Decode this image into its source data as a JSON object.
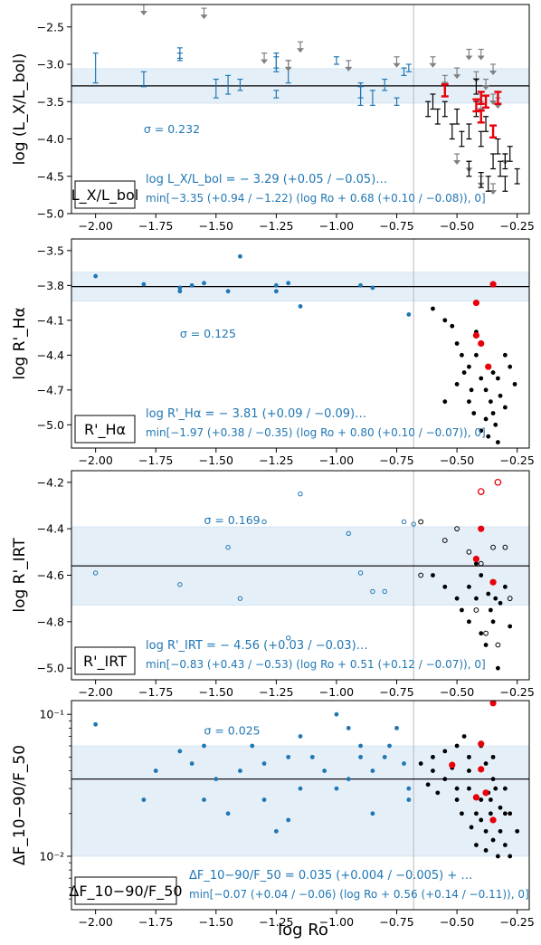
{
  "chart_data": [
    {
      "type": "scatter",
      "ylabel": "log (L_X/L_bol)",
      "xlabel": "",
      "xlim": [
        -2.1,
        -0.2
      ],
      "ylim": [
        -5.0,
        -2.2
      ],
      "xticks": [
        -2.0,
        -1.75,
        -1.5,
        -1.25,
        -1.0,
        -0.75,
        -0.5,
        -0.25
      ],
      "xtick_labels": [
        "−2.00",
        "−1.75",
        "−1.50",
        "−1.25",
        "−1.00",
        "−0.75",
        "−0.50",
        "−0.25"
      ],
      "yticks": [
        -2.5,
        -3.0,
        -3.5,
        -4.0,
        -4.5,
        -5.0
      ],
      "ytick_labels": [
        "−2.5",
        "−3.0",
        "−3.5",
        "−4.0",
        "−4.5",
        "−5.0"
      ],
      "log_y": false,
      "vline_x": -0.68,
      "fit": {
        "sat": -3.29,
        "slope": -3.35,
        "knee": -0.68,
        "sigma": 0.232
      },
      "label_box": "L_X/L_bol",
      "sigma_label": "σ = 0.232",
      "formula_line1": "log L_X/L_bol = − 3.29 (+0.05 / −0.05)…",
      "formula_line2": "min[−3.35 (+0.94 / −1.22) (log Ro + 0.68 (+0.10 / −0.08)), 0]",
      "blue_errorbars": [
        [
          -2.0,
          -2.85,
          -3.25
        ],
        [
          -1.8,
          -3.1,
          -3.3
        ],
        [
          -1.65,
          -2.78,
          -2.92
        ],
        [
          -1.65,
          -2.85,
          -2.95
        ],
        [
          -1.5,
          -3.2,
          -3.45
        ],
        [
          -1.45,
          -3.15,
          -3.4
        ],
        [
          -1.4,
          -3.2,
          -3.35
        ],
        [
          -1.25,
          -2.9,
          -3.05
        ],
        [
          -1.25,
          -2.85,
          -3.1
        ],
        [
          -1.25,
          -3.35,
          -3.45
        ],
        [
          -1.2,
          -2.95,
          -3.25
        ],
        [
          -1.0,
          -2.9,
          -3.0
        ],
        [
          -0.9,
          -3.25,
          -3.55
        ],
        [
          -0.9,
          -3.3,
          -3.45
        ],
        [
          -0.85,
          -3.35,
          -3.55
        ],
        [
          -0.8,
          -3.2,
          -3.35
        ],
        [
          -0.75,
          -3.45,
          -3.55
        ],
        [
          -0.72,
          -3.05,
          -3.15
        ],
        [
          -0.7,
          -3.0,
          -3.1
        ]
      ],
      "gray_upper_limits": [
        [
          -1.8,
          -2.2
        ],
        [
          -1.55,
          -2.25
        ],
        [
          -1.3,
          -2.85
        ],
        [
          -1.2,
          -2.95
        ],
        [
          -1.15,
          -2.7
        ],
        [
          -0.95,
          -2.95
        ],
        [
          -0.75,
          -2.9
        ],
        [
          -0.6,
          -2.9
        ],
        [
          -0.55,
          -3.15
        ],
        [
          -0.5,
          -3.05
        ],
        [
          -0.45,
          -2.8
        ],
        [
          -0.42,
          -3.1
        ],
        [
          -0.4,
          -2.8
        ],
        [
          -0.38,
          -3.2
        ],
        [
          -0.35,
          -3.0
        ],
        [
          -0.4,
          -3.5
        ],
        [
          -0.35,
          -3.4
        ],
        [
          -0.33,
          -3.45
        ],
        [
          -0.5,
          -4.2
        ],
        [
          -0.45,
          -4.3
        ],
        [
          -0.4,
          -4.5
        ],
        [
          -0.35,
          -4.6
        ],
        [
          -0.3,
          -4.2
        ]
      ],
      "black_errorbars": [
        [
          -0.6,
          -3.5
        ],
        [
          -0.55,
          -3.6
        ],
        [
          -0.5,
          -3.7
        ],
        [
          -0.45,
          -3.9
        ],
        [
          -0.42,
          -3.6
        ],
        [
          -0.4,
          -4.0
        ],
        [
          -0.38,
          -3.8
        ],
        [
          -0.35,
          -4.3
        ],
        [
          -0.33,
          -4.1
        ],
        [
          -0.3,
          -4.3
        ],
        [
          -0.45,
          -4.4
        ],
        [
          -0.4,
          -4.55
        ],
        [
          -0.37,
          -4.6
        ],
        [
          -0.32,
          -4.4
        ],
        [
          -0.28,
          -4.2
        ],
        [
          -0.3,
          -4.6
        ],
        [
          -0.42,
          -3.3
        ],
        [
          -0.48,
          -4.0
        ],
        [
          -0.52,
          -3.9
        ],
        [
          -0.58,
          -3.7
        ],
        [
          -0.62,
          -3.6
        ],
        [
          -0.25,
          -4.5
        ]
      ],
      "red_errorbars": [
        [
          -0.55,
          -3.35
        ],
        [
          -0.42,
          -3.55
        ],
        [
          -0.4,
          -3.45
        ],
        [
          -0.38,
          -3.5
        ],
        [
          -0.35,
          -3.9
        ],
        [
          -0.4,
          -3.7
        ],
        [
          -0.33,
          -3.45
        ]
      ]
    },
    {
      "type": "scatter",
      "ylabel": "log R'_Hα",
      "xlabel": "",
      "xlim": [
        -2.1,
        -0.2
      ],
      "ylim": [
        -5.2,
        -3.4
      ],
      "xticks": [
        -2.0,
        -1.75,
        -1.5,
        -1.25,
        -1.0,
        -0.75,
        -0.5,
        -0.25
      ],
      "xtick_labels": [
        "−2.00",
        "−1.75",
        "−1.50",
        "−1.25",
        "−1.00",
        "−0.75",
        "−0.50",
        "−0.25"
      ],
      "yticks": [
        -3.5,
        -3.8,
        -4.1,
        -4.4,
        -4.7,
        -5.0
      ],
      "ytick_labels": [
        "−3.5",
        "−3.8",
        "−4.1",
        "−4.4",
        "−4.7",
        "−5.0"
      ],
      "log_y": false,
      "vline_x": -0.68,
      "fit": {
        "sat": -3.81,
        "slope": -1.97,
        "knee": -0.8,
        "sigma": 0.125
      },
      "label_box": "R'_Hα",
      "sigma_label": "σ = 0.125",
      "formula_line1": "log R'_Hα = − 3.81 (+0.09 / −0.09)…",
      "formula_line2": "min[−1.97 (+0.38 / −0.35) (log Ro + 0.80 (+0.10 / −0.07)), 0]",
      "blue_points": [
        [
          -2.0,
          -3.72
        ],
        [
          -1.8,
          -3.79
        ],
        [
          -1.65,
          -3.82
        ],
        [
          -1.65,
          -3.85
        ],
        [
          -1.6,
          -3.8
        ],
        [
          -1.55,
          -3.78
        ],
        [
          -1.45,
          -3.85
        ],
        [
          -1.4,
          -3.55
        ],
        [
          -1.25,
          -3.8
        ],
        [
          -1.25,
          -3.85
        ],
        [
          -1.2,
          -3.78
        ],
        [
          -1.15,
          -3.98
        ],
        [
          -0.9,
          -3.8
        ],
        [
          -0.85,
          -3.82
        ],
        [
          -0.7,
          -4.05
        ]
      ],
      "black_points": [
        [
          -0.6,
          -4.0
        ],
        [
          -0.55,
          -4.1
        ],
        [
          -0.5,
          -4.3
        ],
        [
          -0.48,
          -4.4
        ],
        [
          -0.45,
          -4.5
        ],
        [
          -0.42,
          -4.4
        ],
        [
          -0.4,
          -4.6
        ],
        [
          -0.38,
          -4.7
        ],
        [
          -0.36,
          -4.8
        ],
        [
          -0.35,
          -4.9
        ],
        [
          -0.34,
          -5.0
        ],
        [
          -0.33,
          -4.6
        ],
        [
          -0.32,
          -4.75
        ],
        [
          -0.3,
          -4.85
        ],
        [
          -0.28,
          -4.5
        ],
        [
          -0.45,
          -4.8
        ],
        [
          -0.43,
          -4.9
        ],
        [
          -0.4,
          -5.05
        ],
        [
          -0.38,
          -4.95
        ],
        [
          -0.42,
          -4.2
        ],
        [
          -0.5,
          -4.65
        ],
        [
          -0.55,
          -4.8
        ],
        [
          -0.35,
          -4.55
        ],
        [
          -0.3,
          -4.4
        ],
        [
          -0.26,
          -4.65
        ],
        [
          -0.44,
          -4.7
        ],
        [
          -0.37,
          -5.1
        ],
        [
          -0.33,
          -5.15
        ],
        [
          -0.47,
          -4.55
        ],
        [
          -0.52,
          -4.15
        ]
      ],
      "red_points": [
        [
          -0.35,
          -3.79
        ],
        [
          -0.42,
          -3.95
        ],
        [
          -0.42,
          -4.23
        ],
        [
          -0.4,
          -4.3
        ],
        [
          -0.37,
          -4.5
        ]
      ]
    },
    {
      "type": "scatter",
      "ylabel": "log R'_IRT",
      "xlabel": "",
      "xlim": [
        -2.1,
        -0.2
      ],
      "ylim": [
        -5.05,
        -4.15
      ],
      "xticks": [
        -2.0,
        -1.75,
        -1.5,
        -1.25,
        -1.0,
        -0.75,
        -0.5,
        -0.25
      ],
      "xtick_labels": [
        "−2.00",
        "−1.75",
        "−1.50",
        "−1.25",
        "−1.00",
        "−0.75",
        "−0.50",
        "−0.25"
      ],
      "yticks": [
        -4.2,
        -4.4,
        -4.6,
        -4.8,
        -5.0
      ],
      "ytick_labels": [
        "−4.2",
        "−4.4",
        "−4.6",
        "−4.8",
        "−5.0"
      ],
      "log_y": false,
      "vline_x": -0.68,
      "fit": {
        "sat": -4.56,
        "slope": -0.83,
        "knee": -0.51,
        "sigma": 0.169
      },
      "label_box": "R'_IRT",
      "sigma_label": "σ = 0.169",
      "formula_line1": "log R'_IRT = − 4.56 (+0.03 / −0.03)…",
      "formula_line2": "min[−0.83 (+0.43 / −0.53) (log Ro + 0.51 (+0.12 / −0.07)), 0]",
      "blue_points": [
        [
          -2.0,
          -4.59
        ],
        [
          -1.65,
          -4.64
        ],
        [
          -1.45,
          -4.48
        ],
        [
          -1.4,
          -4.7
        ],
        [
          -1.3,
          -4.37
        ],
        [
          -1.2,
          -4.87
        ],
        [
          -1.15,
          -4.25
        ],
        [
          -0.95,
          -4.42
        ],
        [
          -0.9,
          -4.59
        ],
        [
          -0.85,
          -4.67
        ],
        [
          -0.8,
          -4.67
        ],
        [
          -0.72,
          -4.37
        ],
        [
          -0.68,
          -4.38
        ]
      ],
      "black_points": [
        [
          -0.6,
          -4.6
        ],
        [
          -0.55,
          -4.65
        ],
        [
          -0.5,
          -4.7
        ],
        [
          -0.48,
          -4.75
        ],
        [
          -0.45,
          -4.8
        ],
        [
          -0.42,
          -4.7
        ],
        [
          -0.4,
          -4.85
        ],
        [
          -0.38,
          -4.9
        ],
        [
          -0.36,
          -4.75
        ],
        [
          -0.35,
          -4.8
        ],
        [
          -0.33,
          -5.0
        ],
        [
          -0.32,
          -4.72
        ],
        [
          -0.3,
          -4.65
        ],
        [
          -0.28,
          -4.82
        ],
        [
          -0.45,
          -4.65
        ],
        [
          -0.42,
          -4.55
        ],
        [
          -0.4,
          -4.6
        ],
        [
          -0.37,
          -4.68
        ],
        [
          -0.34,
          -4.7
        ]
      ],
      "black_open_points": [
        [
          -0.65,
          -4.37
        ],
        [
          -0.55,
          -4.45
        ],
        [
          -0.5,
          -4.4
        ],
        [
          -0.45,
          -4.5
        ],
        [
          -0.4,
          -4.55
        ],
        [
          -0.35,
          -4.48
        ],
        [
          -0.3,
          -4.48
        ],
        [
          -0.28,
          -4.7
        ],
        [
          -0.42,
          -4.75
        ],
        [
          -0.38,
          -4.85
        ],
        [
          -0.65,
          -4.6
        ],
        [
          -0.33,
          -4.9
        ]
      ],
      "red_points": [
        [
          -0.42,
          -4.53
        ],
        [
          -0.4,
          -4.4
        ],
        [
          -0.35,
          -4.63
        ]
      ],
      "red_open_points": [
        [
          -0.4,
          -4.24
        ],
        [
          -0.33,
          -4.2
        ]
      ]
    },
    {
      "type": "scatter",
      "ylabel": "ΔF_10−90/F_50",
      "xlabel": "log Ro",
      "xlim": [
        -2.1,
        -0.2
      ],
      "ylim": [
        0.0042,
        0.125
      ],
      "xticks": [
        -2.0,
        -1.75,
        -1.5,
        -1.25,
        -1.0,
        -0.75,
        -0.5,
        -0.25
      ],
      "xtick_labels": [
        "−2.00",
        "−1.75",
        "−1.50",
        "−1.25",
        "−1.00",
        "−0.75",
        "−0.50",
        "−0.25"
      ],
      "yticks": [
        0.01,
        0.1
      ],
      "ytick_labels": [
        "10⁻²",
        "10⁻¹"
      ],
      "log_y": true,
      "vline_x": -0.68,
      "fit": {
        "sat": 0.035,
        "slope": -0.07,
        "knee": -0.56,
        "sigma": 0.025
      },
      "label_box": "ΔF_10−90/F_50",
      "sigma_label": "σ = 0.025",
      "formula_line1": "ΔF_10−90/F_50 = 0.035 (+0.004 / −0.005) + …",
      "formula_line2": "min[−0.07 (+0.04 / −0.06) (log Ro + 0.56 (+0.14 / −0.11)), 0]",
      "blue_points": [
        [
          -2.0,
          0.085
        ],
        [
          -1.8,
          0.025
        ],
        [
          -1.75,
          0.04
        ],
        [
          -1.65,
          0.055
        ],
        [
          -1.6,
          0.045
        ],
        [
          -1.55,
          0.025
        ],
        [
          -1.5,
          0.035
        ],
        [
          -1.45,
          0.02
        ],
        [
          -1.4,
          0.04
        ],
        [
          -1.35,
          0.06
        ],
        [
          -1.3,
          0.025
        ],
        [
          -1.25,
          0.015
        ],
        [
          -1.2,
          0.018
        ],
        [
          -1.15,
          0.03
        ],
        [
          -1.1,
          0.05
        ],
        [
          -1.0,
          0.1
        ],
        [
          -0.95,
          0.08
        ],
        [
          -0.9,
          0.06
        ],
        [
          -0.85,
          0.04
        ],
        [
          -0.8,
          0.05
        ],
        [
          -0.75,
          0.08
        ],
        [
          -0.7,
          0.03
        ],
        [
          -1.05,
          0.04
        ],
        [
          -0.85,
          0.02
        ],
        [
          -0.72,
          0.045
        ],
        [
          -1.55,
          0.06
        ],
        [
          -1.15,
          0.07
        ],
        [
          -0.95,
          0.035
        ],
        [
          -0.9,
          0.05
        ],
        [
          -0.78,
          0.06
        ],
        [
          -0.7,
          0.025
        ],
        [
          -1.2,
          0.05
        ],
        [
          -1.3,
          0.045
        ],
        [
          -1.0,
          0.03
        ]
      ],
      "black_points": [
        [
          -0.6,
          0.04
        ],
        [
          -0.55,
          0.035
        ],
        [
          -0.5,
          0.025
        ],
        [
          -0.45,
          0.03
        ],
        [
          -0.42,
          0.02
        ],
        [
          -0.4,
          0.025
        ],
        [
          -0.38,
          0.015
        ],
        [
          -0.36,
          0.02
        ],
        [
          -0.34,
          0.03
        ],
        [
          -0.32,
          0.015
        ],
        [
          -0.3,
          0.012
        ],
        [
          -0.28,
          0.01
        ],
        [
          -0.45,
          0.05
        ],
        [
          -0.4,
          0.06
        ],
        [
          -0.35,
          0.05
        ],
        [
          -0.6,
          0.05
        ],
        [
          -0.65,
          0.045
        ],
        [
          -0.55,
          0.055
        ],
        [
          -0.5,
          0.06
        ],
        [
          -0.38,
          0.045
        ],
        [
          -0.35,
          0.035
        ],
        [
          -0.3,
          0.02
        ],
        [
          -0.33,
          0.01
        ],
        [
          -0.42,
          0.012
        ],
        [
          -0.38,
          0.011
        ],
        [
          -0.35,
          0.013
        ],
        [
          -0.28,
          0.02
        ],
        [
          -0.25,
          0.015
        ],
        [
          -0.45,
          0.04
        ],
        [
          -0.5,
          0.03
        ],
        [
          -0.48,
          0.02
        ],
        [
          -0.4,
          0.018
        ],
        [
          -0.36,
          0.025
        ],
        [
          -0.58,
          0.028
        ],
        [
          -0.62,
          0.032
        ],
        [
          -0.44,
          0.016
        ],
        [
          -0.32,
          0.022
        ],
        [
          -0.3,
          0.03
        ],
        [
          -0.52,
          0.042
        ],
        [
          -0.47,
          0.07
        ],
        [
          -0.37,
          0.028
        ]
      ],
      "red_points": [
        [
          -0.35,
          0.12
        ],
        [
          -0.4,
          0.062
        ],
        [
          -0.4,
          0.041
        ],
        [
          -0.52,
          0.044
        ],
        [
          -0.42,
          0.026
        ],
        [
          -0.38,
          0.028
        ],
        [
          -0.35,
          0.018
        ]
      ]
    }
  ]
}
